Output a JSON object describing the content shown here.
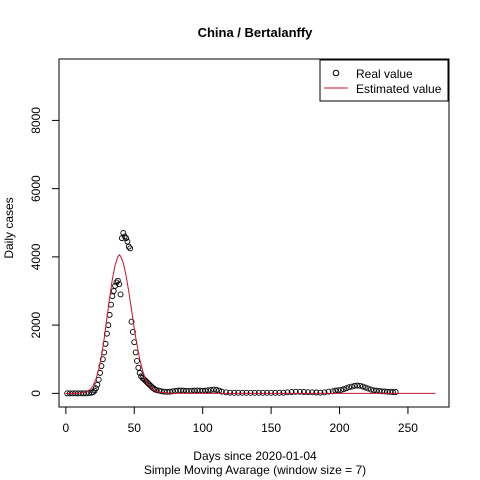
{
  "chart_data": {
    "type": "scatter",
    "title": "China / Bertalanffy",
    "xlabel": "Days since 2020-01-04",
    "subtitle": "Simple Moving Avarage (window size = 7)",
    "ylabel": "Daily cases",
    "xlim": [
      -5,
      280
    ],
    "ylim": [
      -400,
      9800
    ],
    "x_ticks": [
      0,
      50,
      100,
      150,
      200,
      250
    ],
    "y_ticks": [
      0,
      2000,
      4000,
      6000,
      8000
    ],
    "legend": {
      "position": "top-right",
      "entries": [
        {
          "label": "Real value",
          "marker": "circle"
        },
        {
          "label": "Estimated value",
          "marker": "line"
        }
      ]
    },
    "series": [
      {
        "name": "Real value",
        "kind": "points",
        "color": "#000000",
        "points": [
          [
            1,
            0
          ],
          [
            3,
            0
          ],
          [
            5,
            0
          ],
          [
            7,
            0
          ],
          [
            9,
            0
          ],
          [
            11,
            0
          ],
          [
            13,
            0
          ],
          [
            15,
            0
          ],
          [
            17,
            5
          ],
          [
            19,
            20
          ],
          [
            20,
            40
          ],
          [
            21,
            80
          ],
          [
            22,
            150
          ],
          [
            23,
            250
          ],
          [
            24,
            400
          ],
          [
            25,
            600
          ],
          [
            26,
            800
          ],
          [
            27,
            1000
          ],
          [
            28,
            1200
          ],
          [
            29,
            1450
          ],
          [
            30,
            1750
          ],
          [
            31,
            2000
          ],
          [
            32,
            2300
          ],
          [
            33,
            2600
          ],
          [
            34,
            2850
          ],
          [
            35,
            3000
          ],
          [
            36,
            3150
          ],
          [
            37,
            3250
          ],
          [
            38,
            3300
          ],
          [
            39,
            3200
          ],
          [
            40,
            2900
          ],
          [
            41,
            4550
          ],
          [
            42,
            4700
          ],
          [
            43,
            4600
          ],
          [
            44,
            4550
          ],
          [
            45,
            4450
          ],
          [
            46,
            4300
          ],
          [
            47,
            4250
          ],
          [
            48,
            2100
          ],
          [
            49,
            1800
          ],
          [
            50,
            1500
          ],
          [
            51,
            1200
          ],
          [
            52,
            950
          ],
          [
            53,
            750
          ],
          [
            54,
            600
          ],
          [
            55,
            500
          ],
          [
            56,
            450
          ],
          [
            57,
            420
          ],
          [
            58,
            380
          ],
          [
            59,
            340
          ],
          [
            60,
            300
          ],
          [
            61,
            260
          ],
          [
            62,
            220
          ],
          [
            63,
            180
          ],
          [
            64,
            150
          ],
          [
            65,
            120
          ],
          [
            66,
            100
          ],
          [
            68,
            80
          ],
          [
            70,
            60
          ],
          [
            72,
            50
          ],
          [
            74,
            45
          ],
          [
            76,
            50
          ],
          [
            78,
            60
          ],
          [
            80,
            70
          ],
          [
            82,
            80
          ],
          [
            84,
            85
          ],
          [
            86,
            80
          ],
          [
            88,
            75
          ],
          [
            90,
            70
          ],
          [
            92,
            75
          ],
          [
            94,
            80
          ],
          [
            96,
            85
          ],
          [
            98,
            80
          ],
          [
            100,
            75
          ],
          [
            102,
            80
          ],
          [
            104,
            90
          ],
          [
            106,
            100
          ],
          [
            108,
            110
          ],
          [
            110,
            100
          ],
          [
            112,
            80
          ],
          [
            114,
            50
          ],
          [
            117,
            30
          ],
          [
            120,
            20
          ],
          [
            123,
            15
          ],
          [
            126,
            15
          ],
          [
            129,
            15
          ],
          [
            132,
            15
          ],
          [
            135,
            15
          ],
          [
            138,
            15
          ],
          [
            141,
            15
          ],
          [
            144,
            15
          ],
          [
            147,
            15
          ],
          [
            150,
            15
          ],
          [
            153,
            15
          ],
          [
            156,
            15
          ],
          [
            159,
            20
          ],
          [
            162,
            30
          ],
          [
            165,
            40
          ],
          [
            168,
            45
          ],
          [
            171,
            45
          ],
          [
            174,
            40
          ],
          [
            177,
            35
          ],
          [
            180,
            30
          ],
          [
            183,
            25
          ],
          [
            186,
            20
          ],
          [
            189,
            30
          ],
          [
            192,
            50
          ],
          [
            195,
            60
          ],
          [
            197,
            80
          ],
          [
            199,
            90
          ],
          [
            201,
            100
          ],
          [
            203,
            120
          ],
          [
            205,
            150
          ],
          [
            207,
            180
          ],
          [
            209,
            200
          ],
          [
            211,
            220
          ],
          [
            213,
            230
          ],
          [
            215,
            220
          ],
          [
            217,
            200
          ],
          [
            219,
            170
          ],
          [
            221,
            140
          ],
          [
            223,
            110
          ],
          [
            225,
            90
          ],
          [
            227,
            80
          ],
          [
            229,
            70
          ],
          [
            231,
            60
          ],
          [
            233,
            55
          ],
          [
            235,
            50
          ],
          [
            237,
            45
          ],
          [
            239,
            40
          ],
          [
            241,
            40
          ]
        ]
      },
      {
        "name": "Estimated value",
        "kind": "line",
        "color": "#c8102e",
        "points": [
          [
            0,
            0
          ],
          [
            6,
            0
          ],
          [
            10,
            5
          ],
          [
            14,
            30
          ],
          [
            18,
            120
          ],
          [
            20,
            230
          ],
          [
            22,
            420
          ],
          [
            24,
            700
          ],
          [
            26,
            1080
          ],
          [
            28,
            1600
          ],
          [
            30,
            2200
          ],
          [
            32,
            2800
          ],
          [
            34,
            3350
          ],
          [
            36,
            3760
          ],
          [
            38,
            4000
          ],
          [
            39,
            4060
          ],
          [
            40,
            4020
          ],
          [
            42,
            3820
          ],
          [
            44,
            3450
          ],
          [
            46,
            2980
          ],
          [
            48,
            2450
          ],
          [
            50,
            1900
          ],
          [
            52,
            1420
          ],
          [
            54,
            1000
          ],
          [
            56,
            680
          ],
          [
            58,
            440
          ],
          [
            60,
            280
          ],
          [
            62,
            170
          ],
          [
            64,
            100
          ],
          [
            66,
            60
          ],
          [
            68,
            35
          ],
          [
            70,
            20
          ],
          [
            75,
            8
          ],
          [
            80,
            3
          ],
          [
            90,
            1
          ],
          [
            100,
            0
          ],
          [
            150,
            0
          ],
          [
            200,
            0
          ],
          [
            250,
            0
          ],
          [
            270,
            0
          ]
        ]
      }
    ]
  }
}
